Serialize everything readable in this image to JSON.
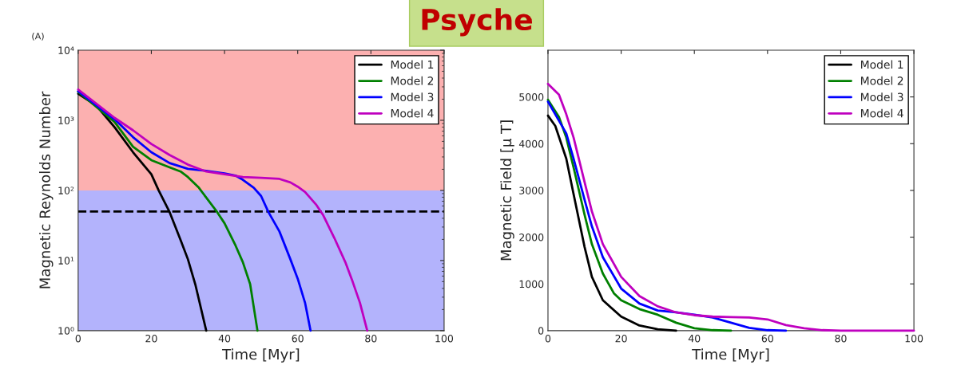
{
  "chart_data": [
    {
      "type": "line",
      "title": "Psyche",
      "annotations": [
        "(A)"
      ],
      "xlabel": "Time [Myr]",
      "ylabel": "Magnetic Reynolds Number",
      "log": "y",
      "xlim": [
        0,
        100
      ],
      "xticks": [
        0,
        20,
        40,
        60,
        80,
        100
      ],
      "ylim": [
        1,
        10000
      ],
      "yticks": [
        {
          "value": 1,
          "label": "10⁰"
        },
        {
          "value": 10,
          "label": "10¹"
        },
        {
          "value": 100,
          "label": "10²"
        },
        {
          "value": 1000,
          "label": "10³"
        },
        {
          "value": 10000,
          "label": "10⁴"
        }
      ],
      "bands": [
        {
          "axis": "y",
          "from": 100,
          "to": 10000,
          "color": "#fcb0b0"
        },
        {
          "axis": "y",
          "from": 1,
          "to": 100,
          "color": "#b3b3fc"
        }
      ],
      "ref_lines": [
        {
          "axis": "y",
          "value": 50,
          "color": "#000000",
          "line_style": "dashed"
        }
      ],
      "legend": "top right",
      "grid": false,
      "series": [
        {
          "name": "Model 1",
          "color": "#000000",
          "x": [
            0,
            5,
            10,
            15,
            20,
            22,
            25,
            28,
            30,
            32,
            35
          ],
          "values": [
            2390,
            1620,
            790,
            350,
            170,
            100,
            49,
            19.6,
            10.4,
            4.6,
            1
          ]
        },
        {
          "name": "Model 2",
          "color": "#008000",
          "x": [
            0,
            10,
            15,
            20,
            25,
            28,
            30,
            33,
            35,
            38,
            40,
            43,
            45,
            47,
            49
          ],
          "values": [
            2550,
            940,
            420,
            270,
            213,
            186,
            155,
            109,
            79,
            49,
            34,
            16.4,
            9.5,
            4.6,
            1
          ]
        },
        {
          "name": "Model 3",
          "color": "#0000ff",
          "x": [
            0,
            10,
            15,
            20,
            25,
            30,
            35,
            40,
            43,
            45,
            48,
            50,
            52,
            55,
            58,
            60,
            62,
            63.5
          ],
          "values": [
            2600,
            1030,
            575,
            350,
            245,
            203,
            190,
            175,
            163,
            142,
            109,
            83,
            49,
            26,
            10.4,
            5.5,
            2.5,
            1
          ]
        },
        {
          "name": "Model 4",
          "color": "#bf00bf",
          "x": [
            0,
            10,
            15,
            20,
            25,
            30,
            35,
            40,
            45,
            50,
            55,
            58,
            60,
            62,
            65,
            67,
            70,
            73,
            75,
            77,
            79
          ],
          "values": [
            2750,
            1080,
            720,
            460,
            320,
            233,
            186,
            170,
            155,
            151,
            146,
            130,
            113,
            95,
            63,
            44,
            21,
            9.5,
            5.0,
            2.5,
            1
          ]
        }
      ]
    },
    {
      "type": "line",
      "xlabel": "Time [Myr]",
      "ylabel": "Magnetic Field [μ T]",
      "xlim": [
        0,
        100
      ],
      "xticks": [
        0,
        20,
        40,
        60,
        80,
        100
      ],
      "ylim": [
        0,
        6000
      ],
      "yticks": [
        0,
        1000,
        2000,
        3000,
        4000,
        5000
      ],
      "legend": "top right",
      "grid": false,
      "series": [
        {
          "name": "Model 1",
          "color": "#000000",
          "x": [
            0,
            2,
            5,
            7,
            10,
            12,
            15,
            20,
            25,
            30,
            35
          ],
          "values": [
            4600,
            4380,
            3680,
            2920,
            1790,
            1150,
            650,
            300,
            110,
            30,
            0
          ]
        },
        {
          "name": "Model 2",
          "color": "#008000",
          "x": [
            0,
            3,
            5,
            7,
            10,
            12,
            15,
            18,
            20,
            25,
            30,
            35,
            40,
            45,
            50
          ],
          "values": [
            4940,
            4570,
            4130,
            3490,
            2480,
            1850,
            1220,
            800,
            650,
            460,
            340,
            170,
            50,
            10,
            0
          ]
        },
        {
          "name": "Model 3",
          "color": "#0000ff",
          "x": [
            0,
            5,
            7,
            10,
            12,
            15,
            20,
            25,
            30,
            35,
            40,
            45,
            50,
            55,
            60,
            65
          ],
          "values": [
            4900,
            4220,
            3680,
            2800,
            2230,
            1570,
            900,
            580,
            430,
            390,
            340,
            280,
            170,
            60,
            10,
            0
          ]
        },
        {
          "name": "Model 4",
          "color": "#bf00bf",
          "x": [
            0,
            3,
            5,
            7,
            10,
            12,
            15,
            20,
            25,
            30,
            35,
            40,
            45,
            50,
            55,
            60,
            65,
            70,
            75,
            80,
            100
          ],
          "values": [
            5280,
            5050,
            4630,
            4130,
            3180,
            2550,
            1850,
            1150,
            740,
            520,
            390,
            330,
            300,
            290,
            280,
            240,
            120,
            50,
            10,
            0,
            0
          ]
        }
      ]
    }
  ]
}
